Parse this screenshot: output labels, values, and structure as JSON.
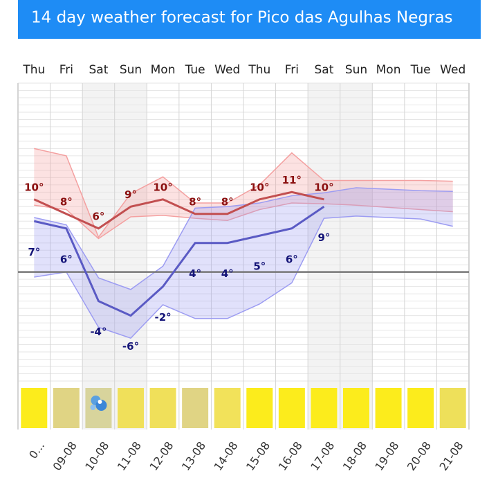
{
  "chart_data": {
    "type": "line",
    "title": "14 day weather forecast for Pico das Agulhas Negras",
    "categories": [
      "Thu",
      "Fri",
      "Sat",
      "Sun",
      "Mon",
      "Tue",
      "Wed",
      "Thu",
      "Fri",
      "Sat",
      "Sun",
      "Mon",
      "Tue",
      "Wed"
    ],
    "dates": [
      "0...",
      "09-08",
      "10-08",
      "11-08",
      "12-08",
      "13-08",
      "14-08",
      "15-08",
      "16-08",
      "17-08",
      "18-08",
      "19-08",
      "20-08",
      "21-08"
    ],
    "shaded_columns": [
      2,
      3,
      9,
      10
    ],
    "day_colors": [
      "#fcec1c",
      "#e0d484",
      "#d8d49c",
      "#f0e05a",
      "#f0e05a",
      "#e0d484",
      "#f2e25a",
      "#fcec1c",
      "#fcec1c",
      "#fcec1c",
      "#fcec1c",
      "#fcec1c",
      "#fcec1c",
      "#eee05a"
    ],
    "max": {
      "color": "#c24f50",
      "band_color": "#f4a0a0",
      "label_color": "#8b1010",
      "values": [
        10,
        8,
        6,
        9,
        10,
        8,
        8,
        10,
        11,
        10,
        null,
        null,
        null,
        null
      ],
      "value_labels": [
        "10°",
        "8°",
        "6°",
        "9°",
        "10°",
        "8°",
        "8°",
        "10°",
        "11°",
        "10°",
        null,
        null,
        null,
        null
      ],
      "band_upper": [
        17,
        16,
        4.8,
        10.8,
        13.1,
        9.5,
        9.5,
        12,
        16.4,
        12.6,
        12.6,
        12.6,
        12.6,
        12.5
      ],
      "band_lower": [
        9.2,
        8.6,
        4.6,
        7.6,
        7.8,
        7.4,
        7.1,
        8.6,
        9.5,
        9.4,
        9.2,
        8.9,
        8.6,
        8.3
      ]
    },
    "min": {
      "color": "#5a5ac4",
      "band_color": "#9c9cf2",
      "label_color": "#141478",
      "values": [
        7,
        6,
        -4,
        -6,
        -2,
        4,
        4,
        5,
        6,
        9,
        null,
        null,
        null,
        null
      ],
      "value_labels": [
        "7°",
        "6°",
        "-4°",
        "-6°",
        "-2°",
        "4°",
        "4°",
        "5°",
        "6°",
        "9°",
        null,
        null,
        null,
        null
      ],
      "band_upper": [
        7.5,
        6.5,
        -0.8,
        -2.4,
        0.8,
        8.8,
        9,
        9.5,
        10.5,
        10.9,
        11.6,
        11.4,
        11.2,
        11.1
      ],
      "band_lower": [
        -0.7,
        0,
        -7.6,
        -9.1,
        -4.5,
        -6.4,
        -6.4,
        -4.4,
        -1.5,
        7.4,
        7.7,
        7.5,
        7.3,
        6.3
      ]
    },
    "ylim": [
      -15,
      26
    ],
    "yticks": [
      -15,
      -14,
      -13,
      -12,
      -11,
      -10,
      -9,
      -8,
      -7,
      -6,
      -5,
      -4,
      -3,
      -2,
      -1,
      0,
      1,
      2,
      3,
      4,
      5,
      6,
      7,
      8,
      9,
      10,
      11,
      12,
      13,
      14,
      15,
      16,
      17,
      18,
      19,
      20,
      21,
      22,
      23,
      24,
      25,
      26
    ],
    "grid": true,
    "zero_line": true
  }
}
